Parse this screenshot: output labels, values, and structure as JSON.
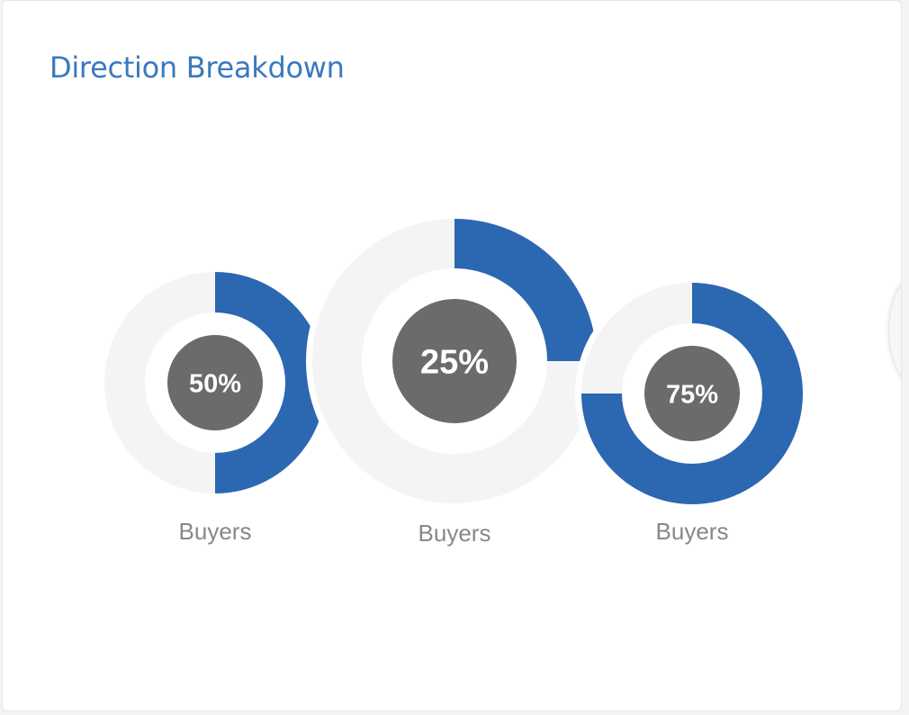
{
  "header": {
    "title": "Direction Breakdown"
  },
  "colors": {
    "title": "#3a78c0",
    "filled": "#2c67b1",
    "track": "#f4f4f4",
    "center": "#6b6b6b",
    "center_text": "#ffffff",
    "label": "#888888"
  },
  "chart_data": {
    "type": "donut",
    "title": "Direction Breakdown",
    "charts": [
      {
        "value": 50,
        "display": "50%",
        "label": "Buyers"
      },
      {
        "value": 75,
        "display": "75%",
        "label": "Buyers"
      },
      {
        "value": 25,
        "display": "25%",
        "label": "Buyers"
      }
    ]
  }
}
